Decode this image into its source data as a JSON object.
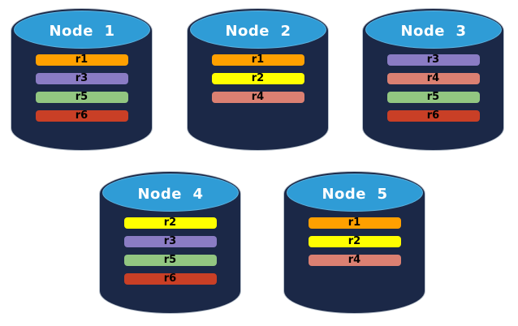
{
  "diagram": {
    "background": "#FFFFFF",
    "cylinder": {
      "body_color": "#1B2847",
      "cap_color": "#2F9CD6",
      "cap_edge_color": "#5EB3DF",
      "outline_color": "#B9C2CC",
      "label_color": "#FFFFFF"
    },
    "bar_text_color": "#000000",
    "replica_colors": {
      "r1": "#FFA000",
      "r2": "#FFFF00",
      "r3": "#8A7CC4",
      "r4": "#DB8072",
      "r5": "#92C681",
      "r6": "#C93F26"
    },
    "nodes": [
      {
        "label": "Node  1",
        "replicas": [
          "r1",
          "r3",
          "r5",
          "r6"
        ]
      },
      {
        "label": "Node  2",
        "replicas": [
          "r1",
          "r2",
          "r4"
        ]
      },
      {
        "label": "Node  3",
        "replicas": [
          "r3",
          "r4",
          "r5",
          "r6"
        ]
      },
      {
        "label": "Node  4",
        "replicas": [
          "r2",
          "r3",
          "r5",
          "r6"
        ]
      },
      {
        "label": "Node  5",
        "replicas": [
          "r1",
          "r2",
          "r4"
        ]
      }
    ]
  }
}
